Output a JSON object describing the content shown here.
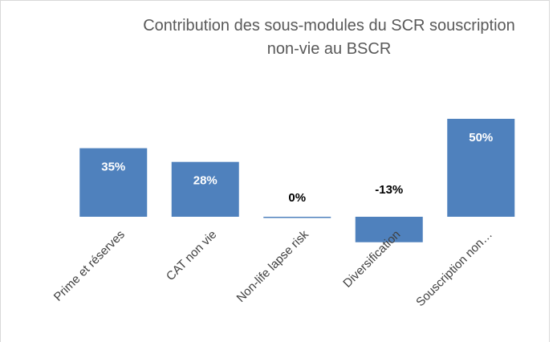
{
  "chart_data": {
    "type": "bar",
    "title": "Contribution des sous-modules du SCR souscription non-vie au BSCR",
    "categories": [
      "Prime et réserves",
      "CAT non vie",
      "Non-life lapse risk",
      "Diversification",
      "Souscription non…"
    ],
    "values": [
      35,
      28,
      0,
      -13,
      50
    ],
    "value_labels": [
      "35%",
      "28%",
      "0%",
      "-13%",
      "50%"
    ],
    "color": "#4f81bd"
  }
}
